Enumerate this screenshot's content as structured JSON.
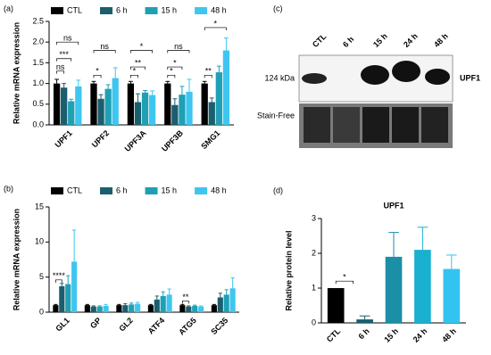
{
  "chart_data": [
    {
      "type": "bar",
      "panel_label": "(a)",
      "y_label": "Relative mRNA expression",
      "categories": [
        "UPF1",
        "UPF2",
        "UPF3A",
        "UPF3B",
        "SMG1"
      ],
      "series": [
        {
          "name": "CTL",
          "color": "#000000",
          "values": [
            1.0,
            1.0,
            1.0,
            1.0,
            1.0
          ],
          "errors": [
            0.1,
            0.05,
            0.05,
            0.05,
            0.05
          ]
        },
        {
          "name": "6 h",
          "color": "#1b5e6e",
          "values": [
            0.9,
            0.63,
            0.55,
            0.48,
            0.55
          ],
          "errors": [
            0.1,
            0.1,
            0.2,
            0.15,
            0.1
          ]
        },
        {
          "name": "15 h",
          "color": "#1ea0b5",
          "values": [
            0.57,
            0.87,
            0.78,
            0.73,
            1.27
          ],
          "errors": [
            0.05,
            0.1,
            0.05,
            0.2,
            0.15
          ]
        },
        {
          "name": "48 h",
          "color": "#3ec6f0",
          "values": [
            0.93,
            1.13,
            0.72,
            0.8,
            1.8
          ],
          "errors": [
            0.15,
            0.25,
            0.1,
            0.3,
            0.3
          ]
        }
      ],
      "ylim": [
        0,
        2.5
      ],
      "yticks": [
        {
          "value": 0,
          "label": "0.0"
        },
        {
          "value": 0.5,
          "label": "0.5"
        },
        {
          "value": 1,
          "label": "1.0"
        },
        {
          "value": 1.5,
          "label": "1.5"
        },
        {
          "value": 2,
          "label": "2.0"
        },
        {
          "value": 2.5,
          "label": "2.5"
        }
      ],
      "annotations": [
        "ns",
        "***",
        "ns",
        "*",
        "ns",
        "*",
        "**",
        "*",
        "*",
        "*",
        "ns",
        "**",
        "*"
      ]
    },
    {
      "type": "bar",
      "panel_label": "(b)",
      "y_label": "Relative mRNA expression",
      "categories": [
        "GL1",
        "GP",
        "GL2",
        "ATF4",
        "ATG5",
        "SC35"
      ],
      "series": [
        {
          "name": "CTL",
          "color": "#000000",
          "values": [
            1,
            1,
            1,
            1,
            1,
            1
          ],
          "errors": [
            0.1,
            0.1,
            0.1,
            0.1,
            0.1,
            0.1
          ]
        },
        {
          "name": "6 h",
          "color": "#1b5e6e",
          "values": [
            3.7,
            0.8,
            1.0,
            1.8,
            0.8,
            2.1
          ],
          "errors": [
            0.4,
            0.1,
            0.2,
            0.5,
            0.1,
            0.6
          ]
        },
        {
          "name": "15 h",
          "color": "#1ea0b5",
          "values": [
            4.0,
            0.8,
            1.1,
            2.3,
            0.9,
            2.5
          ],
          "errors": [
            1.2,
            0.1,
            0.2,
            0.6,
            0.1,
            0.7
          ]
        },
        {
          "name": "48 h",
          "color": "#3ec6f0",
          "values": [
            7.2,
            0.9,
            1.2,
            2.5,
            0.8,
            3.4
          ],
          "errors": [
            4.5,
            0.2,
            0.2,
            0.8,
            0.1,
            1.5
          ]
        }
      ],
      "ylim": [
        0,
        15
      ],
      "yticks": [
        0,
        5,
        10,
        15
      ],
      "annotations": [
        "****",
        "**"
      ]
    },
    {
      "type": "bar",
      "panel_label": "(d)",
      "title": "UPF1",
      "y_label": "Relative protein level",
      "categories": [
        "CTL",
        "6 h",
        "15 h",
        "24 h",
        "48 h"
      ],
      "values": [
        1,
        0.1,
        1.9,
        2.1,
        1.55
      ],
      "errors": [
        0,
        0.1,
        0.7,
        0.65,
        0.4
      ],
      "colors": [
        "#000000",
        "#1b5e6e",
        "#1a8fa6",
        "#1ab0d0",
        "#33c3f0"
      ],
      "ylim": [
        0,
        3
      ],
      "yticks": [
        0,
        1,
        2,
        3
      ],
      "annotations": [
        "*"
      ]
    }
  ],
  "blot_panel": {
    "panel_label": "(c)",
    "lanes": [
      "CTL",
      "6 h",
      "15 h",
      "24 h",
      "48 h"
    ],
    "band_label": "124 kDa",
    "protein": "UPF1",
    "loading_label": "Stain-Free"
  }
}
